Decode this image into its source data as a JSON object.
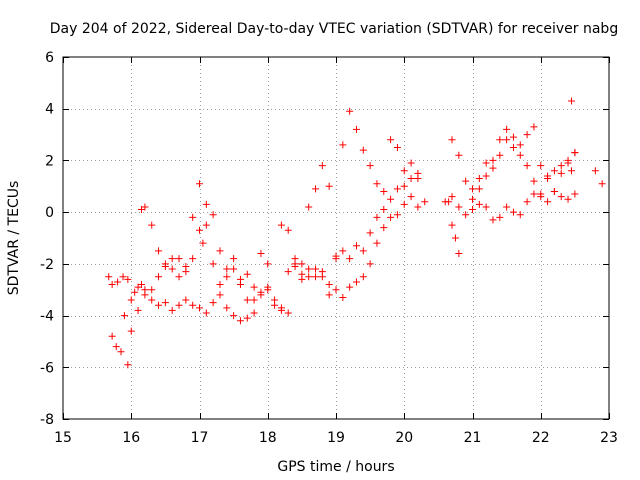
{
  "chart_data": {
    "type": "scatter",
    "title": "Day 204 of 2022, Sidereal Day-to-day VTEC variation (SDTVAR) for receiver nabg",
    "xlabel": "GPS time / hours",
    "ylabel": "SDTVAR / TECUs",
    "xlim": [
      15,
      23
    ],
    "ylim": [
      -8,
      6
    ],
    "xticks": [
      15,
      16,
      17,
      18,
      19,
      20,
      21,
      22,
      23
    ],
    "yticks": [
      -8,
      -6,
      -4,
      -2,
      0,
      2,
      4,
      6
    ],
    "grid": true,
    "marker": "+",
    "color": "#ff0000",
    "series": [
      {
        "name": "SDTVAR",
        "x": [
          15.67,
          15.72,
          15.8,
          15.88,
          15.95,
          16.0,
          16.05,
          16.1,
          16.15,
          16.2,
          16.3,
          16.4,
          16.5,
          16.6,
          16.7,
          16.8,
          16.9,
          17.0,
          17.1,
          17.2,
          17.3,
          17.4,
          17.5,
          17.6,
          17.7,
          17.8,
          17.9,
          18.0,
          18.1,
          18.2,
          18.3,
          18.4,
          18.5,
          18.6,
          18.7,
          18.8,
          18.9,
          19.0,
          19.1,
          19.2,
          19.3,
          19.4,
          19.5,
          19.6,
          19.7,
          19.8,
          19.9,
          20.0,
          20.1,
          20.2,
          20.3,
          20.6,
          20.7,
          20.8,
          20.9,
          21.0,
          21.1,
          21.2,
          21.3,
          21.4,
          21.5,
          21.6,
          21.7,
          21.8,
          21.9,
          22.0,
          22.1,
          22.2,
          22.3,
          22.4,
          22.5,
          22.8,
          22.9,
          15.72,
          15.78,
          15.85,
          15.9,
          15.95,
          16.0,
          16.1,
          16.2,
          16.3,
          16.4,
          16.5,
          16.6,
          16.7,
          16.8,
          16.9,
          17.0,
          17.05,
          17.1,
          17.2,
          17.3,
          17.4,
          17.5,
          17.6,
          17.7,
          17.8,
          17.9,
          18.0,
          18.1,
          18.2,
          18.3,
          18.4,
          18.5,
          18.6,
          18.7,
          18.8,
          18.9,
          19.0,
          19.1,
          19.2,
          19.3,
          19.4,
          19.5,
          19.6,
          19.7,
          19.8,
          19.9,
          20.0,
          20.1,
          20.2,
          20.65,
          20.7,
          20.75,
          20.8,
          21.0,
          21.1,
          21.2,
          21.3,
          21.4,
          21.5,
          21.6,
          21.7,
          21.8,
          21.9,
          22.0,
          22.1,
          22.2,
          22.3,
          22.4,
          22.45,
          22.5,
          16.15,
          16.2,
          16.3,
          16.4,
          16.5,
          16.6,
          16.7,
          16.8,
          16.9,
          17.0,
          17.1,
          17.2,
          17.3,
          17.4,
          17.5,
          17.6,
          17.7,
          17.8,
          17.9,
          18.0,
          18.2,
          18.3,
          18.4,
          18.5,
          18.6,
          18.7,
          18.8,
          18.9,
          19.0,
          19.1,
          19.2,
          19.3,
          19.4,
          19.5,
          19.6,
          19.7,
          19.8,
          19.9,
          20.0,
          20.1,
          20.2,
          20.7,
          20.8,
          20.9,
          21.0,
          21.1,
          21.2,
          21.3,
          21.4,
          21.5,
          21.6,
          21.7,
          21.8,
          21.9,
          22.0,
          22.1,
          22.2,
          22.3,
          22.4,
          22.5,
          22.45
        ],
        "y": [
          -2.5,
          -2.8,
          -2.7,
          -2.5,
          -2.6,
          -3.4,
          -3.1,
          -2.9,
          -2.8,
          -3.0,
          -3.4,
          -3.6,
          -3.5,
          -3.8,
          -3.6,
          -3.4,
          -3.6,
          -3.7,
          -3.9,
          -3.5,
          -3.2,
          -3.7,
          -4.0,
          -4.2,
          -4.1,
          -3.4,
          -3.2,
          -3.0,
          -3.4,
          -3.7,
          -3.9,
          -2.1,
          -2.4,
          -2.5,
          -2.2,
          -2.5,
          -3.2,
          -3.0,
          -3.3,
          -2.9,
          -2.7,
          -2.5,
          -2.0,
          -1.2,
          -0.6,
          -0.2,
          -0.1,
          0.3,
          0.6,
          0.2,
          0.4,
          0.4,
          0.6,
          0.2,
          -0.1,
          0.1,
          0.3,
          0.2,
          -0.3,
          -0.2,
          0.2,
          0.0,
          -0.1,
          0.4,
          0.7,
          0.6,
          0.4,
          0.8,
          0.6,
          0.5,
          0.7,
          1.6,
          1.1,
          -4.8,
          -5.2,
          -5.4,
          -4.0,
          -5.9,
          -4.6,
          -3.8,
          -3.2,
          -3.0,
          -2.5,
          -2.1,
          -1.8,
          -2.5,
          -2.3,
          -1.8,
          -0.7,
          -1.2,
          -0.5,
          -0.1,
          -1.5,
          -2.2,
          -1.8,
          -2.8,
          -3.4,
          -3.9,
          -3.1,
          -2.9,
          -3.6,
          -3.8,
          -2.3,
          -2.0,
          -2.6,
          -2.2,
          -2.5,
          -2.3,
          -2.8,
          -1.8,
          -1.5,
          -1.8,
          -1.3,
          -1.5,
          -0.8,
          -0.2,
          0.1,
          0.5,
          0.9,
          1.0,
          1.3,
          1.5,
          0.4,
          -0.5,
          -1.0,
          -1.6,
          0.9,
          1.3,
          1.9,
          1.7,
          2.2,
          2.8,
          2.5,
          2.2,
          1.8,
          1.2,
          0.7,
          1.4,
          1.6,
          1.8,
          2.0,
          1.6,
          2.3,
          0.1,
          0.2,
          -0.5,
          -1.5,
          -2.0,
          -2.2,
          -1.8,
          -2.1,
          -0.2,
          1.1,
          0.3,
          -2.0,
          -2.8,
          -2.5,
          -2.2,
          -2.6,
          -2.4,
          -2.9,
          -1.6,
          -2.0,
          -0.5,
          -0.7,
          -1.8,
          -2.0,
          0.2,
          0.9,
          1.8,
          1.0,
          -1.7,
          2.6,
          3.9,
          3.2,
          2.4,
          1.8,
          1.1,
          0.8,
          2.8,
          2.5,
          1.6,
          1.9,
          1.3,
          2.8,
          2.2,
          1.2,
          0.5,
          0.9,
          1.4,
          2.0,
          2.8,
          3.2,
          2.9,
          2.6,
          3.0,
          3.3,
          1.8,
          1.3,
          0.8,
          1.5,
          1.9,
          2.3,
          4.3
        ]
      }
    ]
  }
}
